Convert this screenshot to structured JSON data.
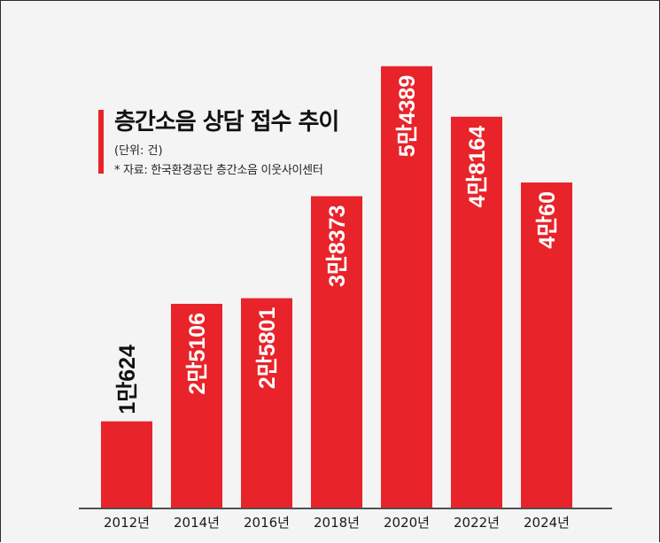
{
  "chart_data": {
    "type": "bar",
    "title": "층간소음 상담 접수 추이",
    "unit_note": "(단위: 건)",
    "source_note": "* 자료: 한국환경공단 층간소음 이웃사이센터",
    "categories": [
      "2012년",
      "2014년",
      "2016년",
      "2018년",
      "2020년",
      "2022년",
      "2024년"
    ],
    "values": [
      10624,
      25106,
      25801,
      38373,
      54389,
      48164,
      40060
    ],
    "value_labels": [
      "1만624",
      "2만5106",
      "2만5801",
      "3만8373",
      "5만4389",
      "4만8164",
      "4만60"
    ],
    "ylim": [
      0,
      56000
    ],
    "grid": false,
    "colors": {
      "bar": "#e8232a",
      "label_inside": "#ffffff",
      "label_outside": "#111111"
    }
  }
}
